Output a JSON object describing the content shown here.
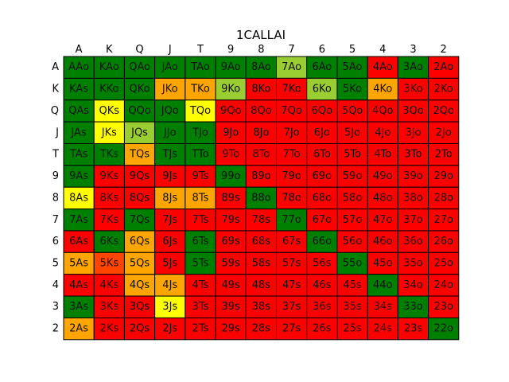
{
  "chart_data": {
    "type": "heatmap",
    "title": "1CALLAI",
    "xlabel": "",
    "ylabel": "",
    "x_ticks": [
      "A",
      "K",
      "Q",
      "J",
      "T",
      "9",
      "8",
      "7",
      "6",
      "5",
      "4",
      "3",
      "2"
    ],
    "y_ticks": [
      "A",
      "K",
      "Q",
      "J",
      "T",
      "9",
      "8",
      "7",
      "6",
      "5",
      "4",
      "3",
      "2"
    ],
    "colors": {
      "G": "#008000",
      "L": "#9acd32",
      "Y": "#ffff00",
      "O": "#ffa500",
      "R": "#ff0000",
      "D": "#ff4500"
    },
    "color_rows": [
      "GGGGGGGLGGRGR",
      "GGGOOLRRLGORR",
      "GYGGYRRRRRRRR",
      "GYLGGRRRRRRRR",
      "GGOGGRRRRRRRR",
      "GRRRRGRRRRRRR",
      "YRROORGRRRRRR",
      "GRGRRRRGRRRRR",
      "RGORGRRRGRRRR",
      "ODORGRRRRGRRR",
      "RROORRRRRRGRR",
      "GRRYRRRRRRRGR",
      "ORRRRRRRRRRRG"
    ],
    "cells": [
      [
        "AAo",
        "KAo",
        "QAo",
        "JAo",
        "TAo",
        "9Ao",
        "8Ao",
        "7Ao",
        "6Ao",
        "5Ao",
        "4Ao",
        "3Ao",
        "2Ao"
      ],
      [
        "KAs",
        "KKo",
        "QKo",
        "JKo",
        "TKo",
        "9Ko",
        "8Ko",
        "7Ko",
        "6Ko",
        "5Ko",
        "4Ko",
        "3Ko",
        "2Ko"
      ],
      [
        "QAs",
        "QKs",
        "QQo",
        "JQo",
        "TQo",
        "9Qo",
        "8Qo",
        "7Qo",
        "6Qo",
        "5Qo",
        "4Qo",
        "3Qo",
        "2Qo"
      ],
      [
        "JAs",
        "JKs",
        "JQs",
        "JJo",
        "TJo",
        "9Jo",
        "8Jo",
        "7Jo",
        "6Jo",
        "5Jo",
        "4Jo",
        "3Jo",
        "2Jo"
      ],
      [
        "TAs",
        "TKs",
        "TQs",
        "TJs",
        "TTo",
        "9To",
        "8To",
        "7To",
        "6To",
        "5To",
        "4To",
        "3To",
        "2To"
      ],
      [
        "9As",
        "9Ks",
        "9Qs",
        "9Js",
        "9Ts",
        "99o",
        "89o",
        "79o",
        "69o",
        "59o",
        "49o",
        "39o",
        "29o"
      ],
      [
        "8As",
        "8Ks",
        "8Qs",
        "8Js",
        "8Ts",
        "89s",
        "88o",
        "78o",
        "68o",
        "58o",
        "48o",
        "38o",
        "28o"
      ],
      [
        "7As",
        "7Ks",
        "7Qs",
        "7Js",
        "7Ts",
        "79s",
        "78s",
        "77o",
        "67o",
        "57o",
        "47o",
        "37o",
        "27o"
      ],
      [
        "6As",
        "6Ks",
        "6Qs",
        "6Js",
        "6Ts",
        "69s",
        "68s",
        "67s",
        "66o",
        "56o",
        "46o",
        "36o",
        "26o"
      ],
      [
        "5As",
        "5Ks",
        "5Qs",
        "5Js",
        "5Ts",
        "59s",
        "58s",
        "57s",
        "56s",
        "55o",
        "45o",
        "35o",
        "25o"
      ],
      [
        "4As",
        "4Ks",
        "4Qs",
        "4Js",
        "4Ts",
        "49s",
        "48s",
        "47s",
        "46s",
        "45s",
        "44o",
        "34o",
        "24o"
      ],
      [
        "3As",
        "3Ks",
        "3Qs",
        "3Js",
        "3Ts",
        "39s",
        "38s",
        "37s",
        "36s",
        "35s",
        "34s",
        "33o",
        "23o"
      ],
      [
        "2As",
        "2Ks",
        "2Qs",
        "2Js",
        "2Ts",
        "29s",
        "28s",
        "27s",
        "26s",
        "25s",
        "24s",
        "23s",
        "22o"
      ]
    ]
  }
}
